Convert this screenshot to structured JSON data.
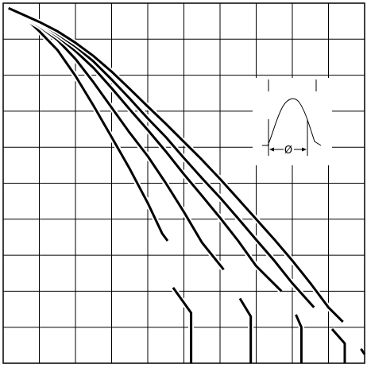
{
  "chart_data": {
    "type": "line",
    "title": "",
    "xlabel": "",
    "ylabel": "",
    "xlim": [
      0,
      10
    ],
    "ylim": [
      0,
      10
    ],
    "grid": true,
    "x_gridlines": [
      0,
      1,
      2,
      3,
      4,
      5,
      6,
      7,
      8,
      9,
      10
    ],
    "y_gridlines": [
      0,
      1,
      2,
      3,
      4,
      5,
      6,
      7,
      8,
      9,
      10
    ],
    "series": [
      {
        "points": [
          [
            0.15,
            0.14
          ],
          [
            0.6,
            0.4
          ],
          [
            1.0,
            0.78
          ],
          [
            1.5,
            1.3
          ],
          [
            2.0,
            2.02
          ],
          [
            2.5,
            2.85
          ],
          [
            3.0,
            3.72
          ],
          [
            3.5,
            4.6
          ],
          [
            4.0,
            5.55
          ],
          [
            4.4,
            6.4
          ],
          [
            4.55,
            6.6
          ]
        ],
        "gap_to": [
          4.7,
          7.9
        ],
        "tail": [
          [
            4.7,
            7.9
          ],
          [
            5.2,
            8.6
          ],
          [
            5.2,
            10.0
          ]
        ]
      },
      {
        "points": [
          [
            0.15,
            0.14
          ],
          [
            1.0,
            0.64
          ],
          [
            1.5,
            1.02
          ],
          [
            2.0,
            1.55
          ],
          [
            2.5,
            2.2
          ],
          [
            3.0,
            2.9
          ],
          [
            3.5,
            3.6
          ],
          [
            4.0,
            4.25
          ],
          [
            4.5,
            5.0
          ],
          [
            5.0,
            5.8
          ],
          [
            5.5,
            6.65
          ],
          [
            6.1,
            7.4
          ]
        ],
        "gap_to": [
          6.55,
          8.2
        ],
        "tail": [
          [
            6.55,
            8.2
          ],
          [
            6.85,
            8.7
          ],
          [
            6.85,
            10.0
          ]
        ]
      },
      {
        "points": [
          [
            0.15,
            0.14
          ],
          [
            1.0,
            0.58
          ],
          [
            1.5,
            0.92
          ],
          [
            2.0,
            1.33
          ],
          [
            2.5,
            1.8
          ],
          [
            3.0,
            2.36
          ],
          [
            3.5,
            2.95
          ],
          [
            4.0,
            3.52
          ],
          [
            4.5,
            4.12
          ],
          [
            5.0,
            4.75
          ],
          [
            5.5,
            5.35
          ],
          [
            6.0,
            5.96
          ],
          [
            6.5,
            6.6
          ],
          [
            7.0,
            7.3
          ],
          [
            7.7,
            8.0
          ]
        ],
        "gap_to": [
          8.1,
          8.65
        ],
        "tail": [
          [
            8.1,
            8.65
          ],
          [
            8.25,
            9.0
          ],
          [
            8.25,
            10.0
          ]
        ]
      },
      {
        "points": [
          [
            0.15,
            0.14
          ],
          [
            1.0,
            0.55
          ],
          [
            1.5,
            0.85
          ],
          [
            2.0,
            1.2
          ],
          [
            2.5,
            1.62
          ],
          [
            3.0,
            2.12
          ],
          [
            3.5,
            2.65
          ],
          [
            4.0,
            3.2
          ],
          [
            4.5,
            3.72
          ],
          [
            5.0,
            4.3
          ],
          [
            5.5,
            4.86
          ],
          [
            6.0,
            5.4
          ],
          [
            6.5,
            5.98
          ],
          [
            7.0,
            6.57
          ],
          [
            7.5,
            7.15
          ],
          [
            8.0,
            7.78
          ],
          [
            8.6,
            8.45
          ]
        ],
        "gap_to": [
          9.1,
          9.05
        ],
        "tail": [
          [
            9.1,
            9.05
          ],
          [
            9.45,
            9.45
          ],
          [
            9.45,
            10.0
          ]
        ]
      },
      {
        "points": [
          [
            0.15,
            0.14
          ],
          [
            1.0,
            0.52
          ],
          [
            1.5,
            0.78
          ],
          [
            2.0,
            1.1
          ],
          [
            2.5,
            1.47
          ],
          [
            3.0,
            1.9
          ],
          [
            3.5,
            2.38
          ],
          [
            4.0,
            2.87
          ],
          [
            4.5,
            3.35
          ],
          [
            5.0,
            3.85
          ],
          [
            5.5,
            4.35
          ],
          [
            6.0,
            4.88
          ],
          [
            6.5,
            5.44
          ],
          [
            7.0,
            6.0
          ],
          [
            7.5,
            6.56
          ],
          [
            8.0,
            7.15
          ],
          [
            8.5,
            7.78
          ],
          [
            9.0,
            8.45
          ],
          [
            9.4,
            8.85
          ]
        ],
        "gap_to": [
          9.9,
          9.6
        ],
        "tail": [
          [
            9.9,
            9.6
          ],
          [
            10.0,
            9.75
          ]
        ]
      }
    ],
    "inset": {
      "label": "Ø"
    }
  }
}
